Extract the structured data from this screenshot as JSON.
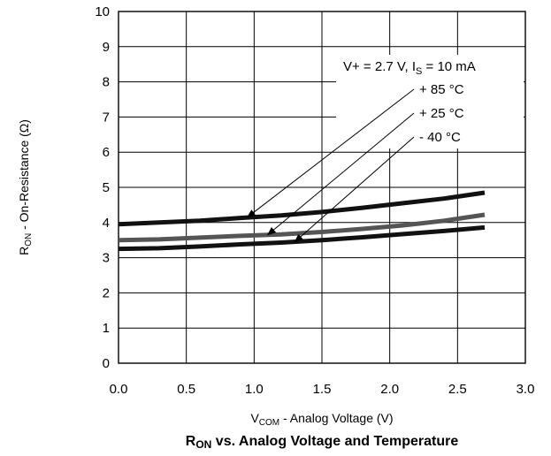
{
  "chart_data": {
    "type": "line",
    "title_main": "R",
    "title_sub": "ON",
    "title_rest": " vs. Analog Voltage and Temperature",
    "xlabel_main": "V",
    "xlabel_sub": "COM",
    "xlabel_rest": " - Analog Voltage (V)",
    "ylabel_main": "R",
    "ylabel_sub": "ON",
    "ylabel_rest": " - On-Resistance (Ω)",
    "xlim": [
      0,
      3
    ],
    "ylim": [
      0,
      10
    ],
    "xticks": [
      "0.0",
      "0.5",
      "1.0",
      "1.5",
      "2.0",
      "2.5",
      "3.0"
    ],
    "yticks": [
      "0",
      "1",
      "2",
      "3",
      "4",
      "5",
      "6",
      "7",
      "8",
      "9",
      "10"
    ],
    "xtick_values": [
      0,
      0.5,
      1.0,
      1.5,
      2.0,
      2.5,
      3.0
    ],
    "ytick_values": [
      0,
      1,
      2,
      3,
      4,
      5,
      6,
      7,
      8,
      9,
      10
    ],
    "grid": true,
    "annotation": {
      "cond_a": "V+ = 2.7 V,  I",
      "cond_sub": "S",
      "cond_b": " = 10 mA",
      "labels": [
        "+ 85 °C",
        "+ 25 °C",
        "- 40 °C"
      ]
    },
    "series": [
      {
        "name": "+ 85 °C",
        "color": "#111111",
        "x": [
          0.0,
          0.3,
          0.6,
          0.9,
          1.2,
          1.5,
          1.8,
          2.1,
          2.4,
          2.7
        ],
        "y": [
          3.95,
          4.0,
          4.05,
          4.13,
          4.2,
          4.3,
          4.42,
          4.55,
          4.68,
          4.85
        ]
      },
      {
        "name": "+ 25 °C",
        "color": "#555555",
        "x": [
          0.0,
          0.3,
          0.6,
          0.9,
          1.2,
          1.5,
          1.8,
          2.1,
          2.4,
          2.7
        ],
        "y": [
          3.5,
          3.52,
          3.57,
          3.62,
          3.66,
          3.73,
          3.82,
          3.92,
          4.05,
          4.22
        ]
      },
      {
        "name": "- 40 °C",
        "color": "#111111",
        "x": [
          0.0,
          0.3,
          0.6,
          0.9,
          1.2,
          1.5,
          1.8,
          2.1,
          2.4,
          2.7
        ],
        "y": [
          3.25,
          3.27,
          3.32,
          3.38,
          3.43,
          3.5,
          3.58,
          3.67,
          3.76,
          3.86
        ]
      }
    ],
    "arrow_targets": [
      {
        "x": 0.95,
        "y": 4.15
      },
      {
        "x": 1.1,
        "y": 3.65
      },
      {
        "x": 1.3,
        "y": 3.45
      }
    ]
  }
}
